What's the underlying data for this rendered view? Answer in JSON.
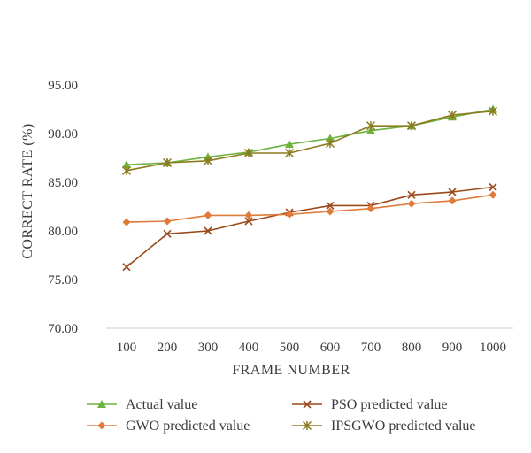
{
  "chart_data": {
    "type": "line",
    "title": "",
    "xlabel": "FRAME NUMBER",
    "ylabel": "CORRECT RATE (%)",
    "categories": [
      "100",
      "200",
      "300",
      "400",
      "500",
      "600",
      "700",
      "800",
      "900",
      "1000"
    ],
    "y_ticks": [
      "70.00",
      "75.00",
      "80.00",
      "85.00",
      "90.00",
      "95.00"
    ],
    "ylim": [
      70,
      95
    ],
    "grid": false,
    "legend_position": "bottom",
    "series": [
      {
        "name": "Actual value",
        "color": "#6db33f",
        "marker": "triangle",
        "values": [
          86.8,
          87.0,
          87.6,
          88.1,
          88.9,
          89.5,
          90.3,
          90.8,
          91.7,
          92.5
        ]
      },
      {
        "name": "PSO predicted value",
        "color": "#9a4a1a",
        "marker": "x",
        "values": [
          76.3,
          79.7,
          80.0,
          81.0,
          81.9,
          82.6,
          82.6,
          83.7,
          84.0,
          84.5
        ]
      },
      {
        "name": "GWO predicted value",
        "color": "#e07b39",
        "marker": "diamond",
        "values": [
          80.9,
          81.0,
          81.6,
          81.6,
          81.7,
          82.0,
          82.3,
          82.8,
          83.1,
          83.7
        ]
      },
      {
        "name": "IPSGWO predicted value",
        "color": "#8c7a1e",
        "marker": "star",
        "values": [
          86.2,
          87.0,
          87.2,
          88.0,
          88.0,
          89.0,
          90.8,
          90.8,
          91.9,
          92.3
        ]
      }
    ]
  }
}
